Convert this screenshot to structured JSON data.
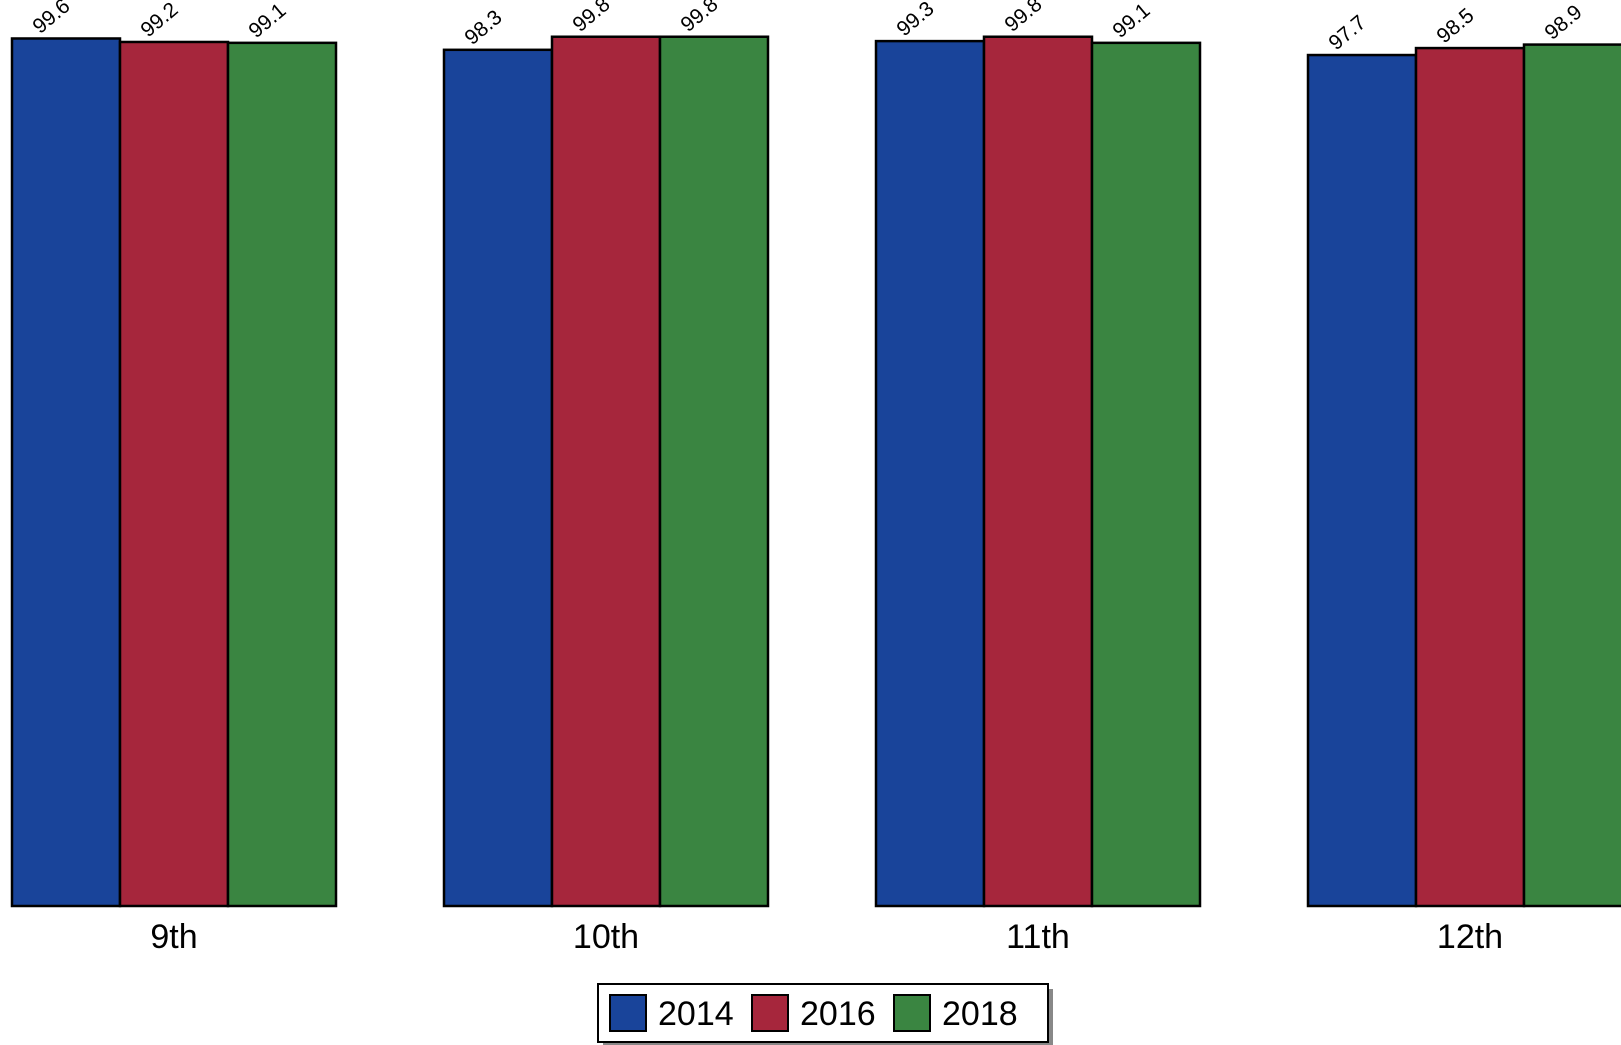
{
  "chart_data": {
    "type": "bar",
    "categories": [
      "9th",
      "10th",
      "11th",
      "12th"
    ],
    "series": [
      {
        "name": "2014",
        "color": "#19449a",
        "values": [
          99.6,
          98.3,
          99.3,
          97.7
        ]
      },
      {
        "name": "2016",
        "color": "#a6263c",
        "values": [
          99.2,
          99.8,
          99.8,
          98.5
        ]
      },
      {
        "name": "2018",
        "color": "#3a8541",
        "values": [
          99.1,
          99.8,
          99.1,
          98.9
        ]
      }
    ],
    "data_labels": [
      [
        "99.6",
        "99.2",
        "99.1"
      ],
      [
        "98.3",
        "99.8",
        "99.8"
      ],
      [
        "99.3",
        "99.8",
        "99.1"
      ],
      [
        "97.7",
        "98.5",
        "98.9"
      ]
    ],
    "title": "",
    "xlabel": "",
    "ylabel": "",
    "ylim": [
      0,
      100
    ],
    "grid": false,
    "legend_position": "bottom-center"
  }
}
